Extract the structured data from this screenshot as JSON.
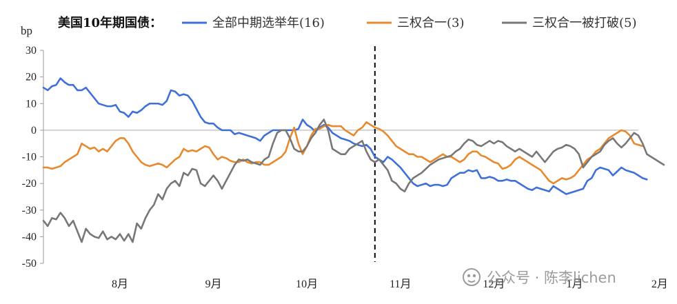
{
  "watermark": {
    "icon": "wechat-official-account-icon",
    "text": "公众号 · 陈李lichen"
  },
  "chart_data": {
    "type": "line",
    "title": "美国10年期国债：",
    "ylabel": "bp",
    "ylim": [
      -50,
      30
    ],
    "yticks": [
      30,
      20,
      10,
      0,
      -10,
      -20,
      -30,
      -40,
      -50
    ],
    "xlim": [
      0,
      140
    ],
    "xticks": [
      {
        "label": "8月",
        "x": 18
      },
      {
        "label": "9月",
        "x": 40
      },
      {
        "label": "10月",
        "x": 62
      },
      {
        "label": "11月",
        "x": 84
      },
      {
        "label": "12月",
        "x": 106
      },
      {
        "label": "1月",
        "x": 125
      },
      {
        "label": "2月",
        "x": 145
      }
    ],
    "zero_line": 0,
    "event_line": {
      "x": 78,
      "style": "dashed",
      "color": "#000000"
    },
    "legend_position": "top",
    "series": [
      {
        "name": "全部中期选举年(16)",
        "color": "#3F6FD8",
        "values": [
          16,
          15,
          16.5,
          17,
          19.5,
          18,
          17,
          17,
          15,
          15,
          16,
          14,
          12,
          10,
          9.5,
          9,
          9,
          9.5,
          7,
          6.5,
          5,
          7,
          6.5,
          7.5,
          9,
          10,
          10,
          10,
          9.5,
          11,
          15,
          14.5,
          13,
          13.5,
          13,
          11,
          8,
          5,
          3,
          2.5,
          2.5,
          1,
          0,
          0,
          0,
          -1.5,
          -1,
          -1.5,
          -2,
          -2.5,
          -3,
          -4,
          -2,
          -1,
          0,
          0,
          0,
          0,
          0,
          0,
          0.5,
          4,
          2,
          1,
          -0.5,
          1,
          2,
          1,
          -1,
          -2,
          -3,
          -3.5,
          -4,
          -5,
          -5.5,
          -6,
          -5.5,
          -7,
          -10,
          -11,
          -12,
          -10,
          -11,
          -12.5,
          -14,
          -16,
          -18,
          -20,
          -21,
          -20.5,
          -20,
          -21,
          -20.5,
          -20.5,
          -21,
          -20.5,
          -18,
          -17,
          -16,
          -16,
          -15,
          -15.5,
          -15,
          -18,
          -18,
          -17.5,
          -18,
          -19,
          -19,
          -18.5,
          -19,
          -19,
          -20,
          -21,
          -22,
          -22.5,
          -21.5,
          -22,
          -22.5,
          -23,
          -21,
          -22,
          -23,
          -24,
          -23.5,
          -23,
          -22.5,
          -22,
          -19,
          -18,
          -15,
          -14,
          -14.5,
          -15,
          -17,
          -15.5,
          -14,
          -15,
          -15.5,
          -16,
          -17,
          -18,
          -18.5
        ]
      },
      {
        "name": "三权合一(3)",
        "color": "#E8892E",
        "values": [
          -14,
          -14,
          -14.5,
          -14,
          -13.5,
          -12,
          -11,
          -10,
          -9,
          -5,
          -6,
          -7,
          -6.5,
          -8,
          -7,
          -8,
          -6,
          -4,
          -3,
          -3,
          -5,
          -8,
          -10,
          -12,
          -13,
          -13.5,
          -13,
          -12.5,
          -13,
          -14,
          -12.5,
          -11,
          -10,
          -7,
          -8,
          -7.5,
          -8,
          -7,
          -6,
          -6.5,
          -9,
          -11,
          -10,
          -10.5,
          -11.5,
          -12,
          -12,
          -11,
          -12,
          -12.5,
          -12,
          -12,
          -13,
          -13,
          -12,
          -11,
          -10,
          -8,
          -3,
          1,
          -5,
          -9,
          -6,
          -2,
          0.5,
          0.5,
          1.5,
          2,
          1.5,
          1.5,
          1.5,
          0,
          -1,
          -2,
          0,
          1,
          3,
          2,
          1,
          0.5,
          -0.5,
          -2,
          -4,
          -6,
          -7,
          -8,
          -9,
          -9,
          -10,
          -10,
          -11,
          -12,
          -11,
          -10,
          -9,
          -10,
          -10,
          -11,
          -12,
          -11,
          -9,
          -8,
          -8,
          -9.5,
          -10,
          -11,
          -12,
          -12.5,
          -14.5,
          -14,
          -13,
          -11,
          -10,
          -11,
          -12,
          -13,
          -14,
          -15,
          -17,
          -19,
          -20,
          -19,
          -18,
          -18.5,
          -18,
          -17,
          -15,
          -13,
          -11,
          -10,
          -8,
          -7,
          -5,
          -3,
          -2,
          -1,
          0,
          -0.5,
          -2,
          -5,
          -5.5,
          -6
        ]
      },
      {
        "name": "三权合一被打破(5)",
        "color": "#777777",
        "values": [
          -34,
          -36,
          -33,
          -33.5,
          -31,
          -33,
          -36,
          -34,
          -38,
          -42,
          -37,
          -39,
          -40,
          -40.5,
          -38,
          -41,
          -40,
          -41,
          -39,
          -41.5,
          -39,
          -42,
          -35,
          -37,
          -33,
          -30,
          -28,
          -24,
          -26,
          -22,
          -20,
          -19,
          -21,
          -16,
          -17,
          -14.5,
          -15,
          -20,
          -21,
          -19,
          -17,
          -19,
          -22,
          -19,
          -16,
          -13,
          -11,
          -11.5,
          -11,
          -12,
          -12.5,
          -13,
          -11,
          -10,
          -5,
          -1,
          0,
          0,
          -3,
          -7,
          -8,
          -8,
          -6,
          -3,
          -1,
          2,
          4,
          0,
          -7,
          -8,
          -9,
          -9,
          -7,
          -6,
          -5,
          -4,
          -8,
          -11,
          -12,
          -11,
          -13,
          -15,
          -19,
          -20,
          -22,
          -23,
          -20,
          -18,
          -17,
          -16,
          -14.5,
          -13,
          -12,
          -11,
          -10.5,
          -10,
          -9.5,
          -8,
          -7,
          -5,
          -3.5,
          -4,
          -5.5,
          -6,
          -5,
          -4,
          -5,
          -4,
          -4.5,
          -6,
          -7,
          -8,
          -7,
          -8,
          -9,
          -10,
          -8,
          -10,
          -12,
          -10,
          -8,
          -7,
          -6.5,
          -5.5,
          -6,
          -7,
          -9,
          -14,
          -12,
          -10,
          -9,
          -8,
          -5.5,
          -4,
          -3,
          -5,
          -6.5,
          -5,
          -3,
          -1,
          -2,
          -5,
          -9,
          -10,
          -11,
          -12,
          -13
        ]
      }
    ]
  }
}
